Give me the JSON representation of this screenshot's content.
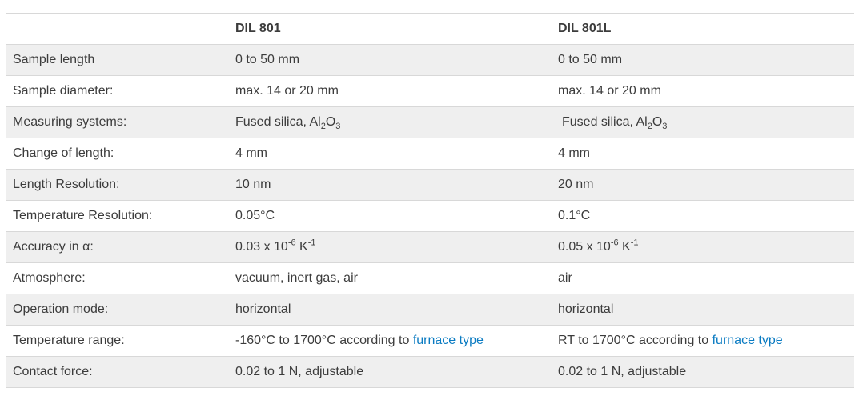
{
  "columns": [
    "",
    "DIL 801",
    "DIL 801L"
  ],
  "rows": [
    {
      "label": "Sample length",
      "a": "0 to 50 mm",
      "b": "0 to 50 mm"
    },
    {
      "label": "Sample diameter:",
      "a": "max. 14 or 20 mm",
      "b": "max. 14 or 20 mm"
    },
    {
      "label": "Measuring systems:",
      "a_prefix": "Fused silica, Al",
      "a_sub1": "2",
      "a_mid": "O",
      "a_sub2": "3",
      "b_prefix": "Fused silica, Al",
      "b_sub1": "2",
      "b_mid": "O",
      "b_sub2": "3"
    },
    {
      "label": "Change of length:",
      "a": "4 mm",
      "b": "4 mm"
    },
    {
      "label": "Length Resolution:",
      "a": "10 nm",
      "b": "20 nm"
    },
    {
      "label": "Temperature Resolution:",
      "a": "0.05°C",
      "b": "0.1°C"
    },
    {
      "label": "Accuracy in  α:",
      "a_prefix": "0.03 x 10",
      "a_sup1": "-6",
      "a_mid": " K",
      "a_sup2": "-1",
      "b_prefix": "0.05 x 10",
      "b_sup1": "-6",
      "b_mid": " K",
      "b_sup2": "-1"
    },
    {
      "label": "Atmosphere:",
      "a": "vacuum, inert gas, air",
      "b": "air"
    },
    {
      "label": "Operation mode:",
      "a": "horizontal",
      "b": "horizontal"
    },
    {
      "label": "Temperature range:",
      "a_text": "-160°C to 1700°C according to ",
      "a_link": "furnace type",
      "b_text": "RT to 1700°C according to ",
      "b_link": "furnace type"
    },
    {
      "label": "Contact force:",
      "a": "0.02 to 1 N, adjustable",
      "b": "0.02 to 1 N, adjustable"
    }
  ],
  "colors": {
    "link": "#0a7bc2",
    "shade": "#efefef",
    "border": "#d8d8d8",
    "text": "#3c3c3c"
  }
}
